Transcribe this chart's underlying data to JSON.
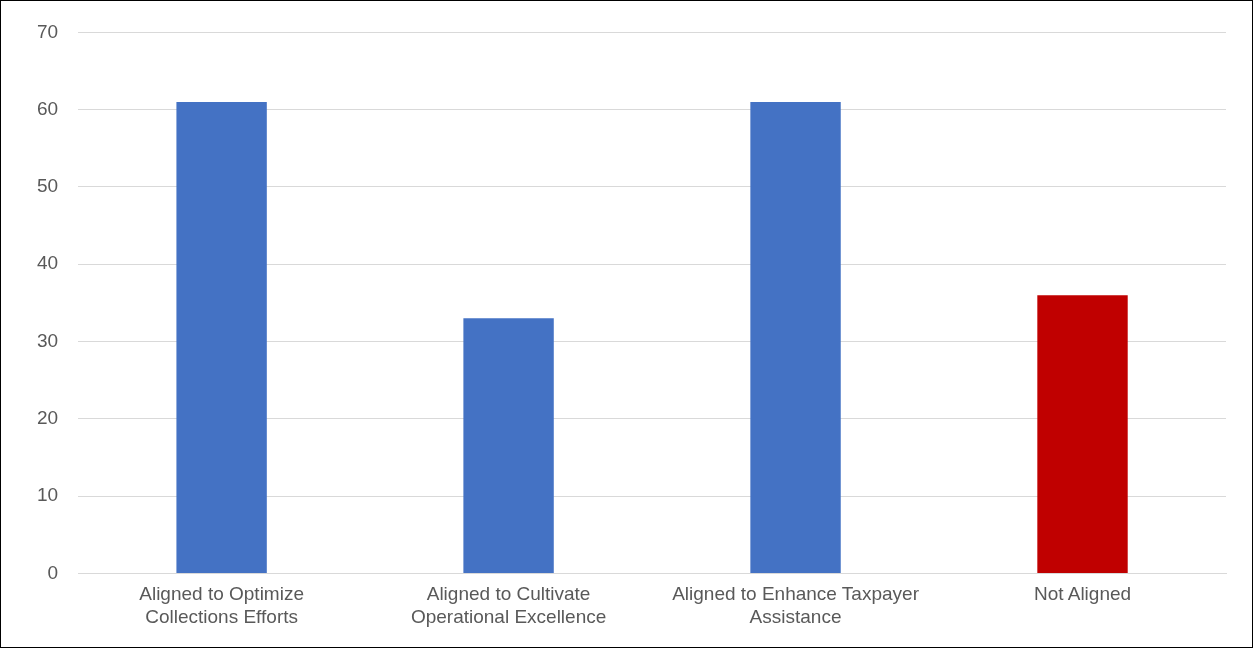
{
  "chart_data": {
    "type": "bar",
    "categories": [
      "Aligned to Optimize Collections Efforts",
      "Aligned to Cultivate Operational Excellence",
      "Aligned to Enhance Taxpayer Assistance",
      "Not Aligned"
    ],
    "values": [
      61,
      33,
      61,
      36
    ],
    "colors": [
      "#4472c4",
      "#4472c4",
      "#4472c4",
      "#c00000"
    ],
    "ylim": [
      0,
      70
    ],
    "yticks": [
      0,
      10,
      20,
      30,
      40,
      50,
      60,
      70
    ],
    "grid": "y",
    "legend": false
  }
}
